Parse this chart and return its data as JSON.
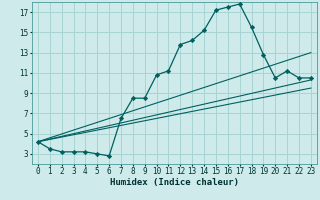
{
  "title": "",
  "xlabel": "Humidex (Indice chaleur)",
  "ylabel": "",
  "bg_color": "#ceeaea",
  "grid_color": "#a8d4d4",
  "line_color": "#006060",
  "xlim": [
    -0.5,
    23.5
  ],
  "ylim": [
    2.0,
    18.0
  ],
  "xticks": [
    0,
    1,
    2,
    3,
    4,
    5,
    6,
    7,
    8,
    9,
    10,
    11,
    12,
    13,
    14,
    15,
    16,
    17,
    18,
    19,
    20,
    21,
    22,
    23
  ],
  "yticks": [
    3,
    5,
    7,
    9,
    11,
    13,
    15,
    17
  ],
  "main_x": [
    0,
    1,
    2,
    3,
    4,
    5,
    6,
    7,
    8,
    9,
    10,
    11,
    12,
    13,
    14,
    15,
    16,
    17,
    18,
    19,
    20,
    21,
    22,
    23
  ],
  "main_y": [
    4.2,
    3.5,
    3.2,
    3.2,
    3.2,
    3.0,
    2.8,
    6.5,
    8.5,
    8.5,
    10.8,
    11.2,
    13.8,
    14.2,
    15.2,
    17.2,
    17.5,
    17.8,
    15.5,
    12.8,
    10.5,
    11.2,
    10.5,
    10.5
  ],
  "straight_lines": [
    {
      "x0": 0,
      "y0": 4.2,
      "x1": 23,
      "y1": 10.3
    },
    {
      "x0": 0,
      "y0": 4.2,
      "x1": 23,
      "y1": 13.0
    },
    {
      "x0": 0,
      "y0": 4.2,
      "x1": 23,
      "y1": 9.5
    }
  ]
}
